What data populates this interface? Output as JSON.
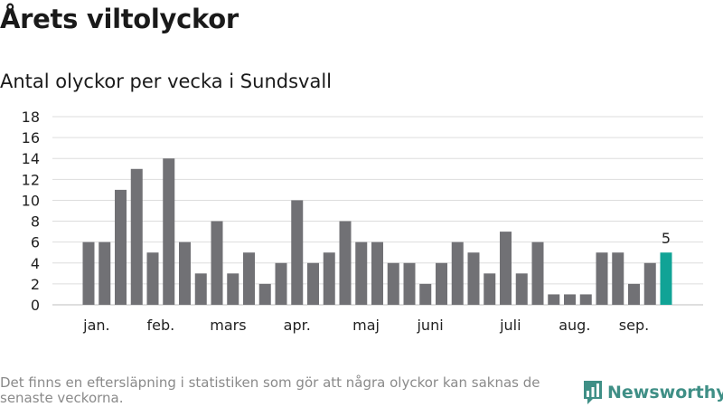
{
  "header": {
    "title": "Årets viltolyckor",
    "subtitle": "Antal olyckor per vecka i Sundsvall"
  },
  "footer": {
    "note": "Det finns en eftersläpning i statistiken som gör att några olyckor kan saknas de senaste veckorna.",
    "brand": "Newsworthy"
  },
  "colors": {
    "bar": "#717175",
    "highlight": "#11a396",
    "grid": "#dddddd",
    "brand": "#3f8f86"
  },
  "chart_data": {
    "type": "bar",
    "title": "Antal olyckor per vecka i Sundsvall",
    "xlabel": "",
    "ylabel": "",
    "ylim": [
      0,
      18
    ],
    "yticks": [
      0,
      2,
      4,
      6,
      8,
      10,
      12,
      14,
      16,
      18
    ],
    "grid": true,
    "legend": "none",
    "values": [
      6,
      6,
      11,
      13,
      5,
      14,
      6,
      3,
      8,
      3,
      5,
      2,
      4,
      10,
      4,
      5,
      8,
      6,
      6,
      4,
      4,
      2,
      4,
      6,
      5,
      3,
      7,
      3,
      6,
      1,
      1,
      1,
      5,
      5,
      2,
      4,
      5
    ],
    "highlight_index": 36,
    "highlight_label": "5",
    "month_labels": [
      {
        "label": "jan.",
        "bar": 0.5
      },
      {
        "label": "feb.",
        "bar": 4.5
      },
      {
        "label": "mars",
        "bar": 8.7
      },
      {
        "label": "apr.",
        "bar": 13.0
      },
      {
        "label": "maj",
        "bar": 17.3
      },
      {
        "label": "juni",
        "bar": 21.3
      },
      {
        "label": "juli",
        "bar": 26.3
      },
      {
        "label": "aug.",
        "bar": 30.3
      },
      {
        "label": "sep.",
        "bar": 34.0
      }
    ]
  }
}
